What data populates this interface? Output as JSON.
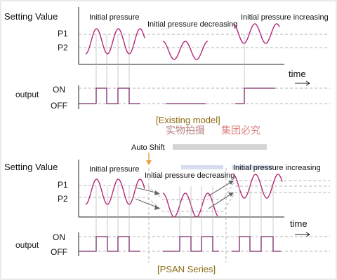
{
  "top": {
    "setting_value": "Setting  Value",
    "p1": "P1",
    "p2": "P2",
    "initial_pressure": "Initial pressure",
    "initial_pressure_decreasing": "Initial pressure decreasing",
    "initial_pressure_increasing": "Initial pressure increasing",
    "time": "time",
    "output": "output",
    "on": "ON",
    "off": "OFF",
    "caption": "[Existing model]"
  },
  "watermark": {
    "left": "实物拍摄",
    "right": "集团必究"
  },
  "bottom": {
    "auto_shift": "Auto Shift",
    "setting_value": "Setting  Value",
    "p1": "P1",
    "p2": "P2",
    "initial_pressure": "Initial pressure",
    "initial_pressure_decreasing": "Initial pressure decreasing",
    "initial_pressure_increasing": "Initial pressure increasing",
    "time": "time",
    "output": "output",
    "on": "ON",
    "off": "OFF",
    "caption": "[PSAN Series]"
  },
  "colors": {
    "wave": "#b3297a",
    "pulse": "#7a2a6a",
    "caption": "#8a6a10",
    "auto_shift_arrow": "#e8a040",
    "watermark": "#b01818"
  }
}
